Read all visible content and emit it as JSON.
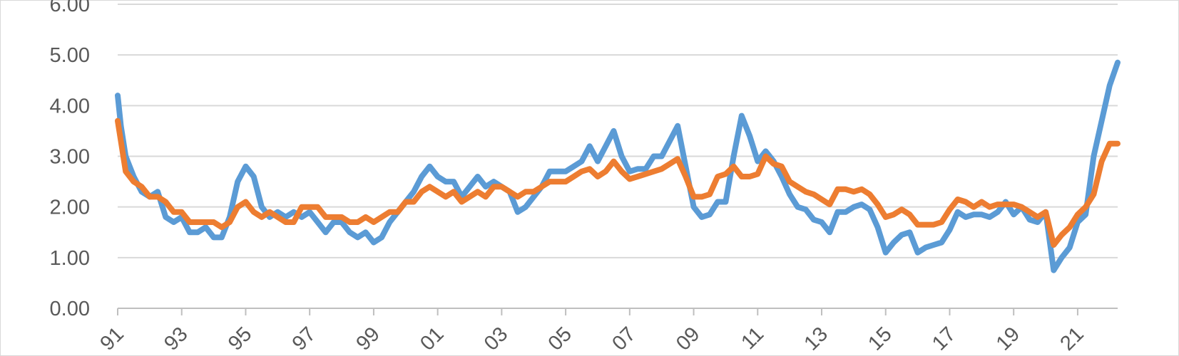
{
  "chart_data": {
    "type": "line",
    "title": "",
    "xlabel": "",
    "ylabel": "",
    "ylim": [
      0,
      6
    ],
    "y_ticks": [
      "0.00",
      "1.00",
      "2.00",
      "3.00",
      "4.00",
      "5.00",
      "6.00"
    ],
    "x_ticks": [
      "91",
      "93",
      "95",
      "97",
      "99",
      "01",
      "03",
      "05",
      "07",
      "09",
      "11",
      "13",
      "15",
      "17",
      "19",
      "21"
    ],
    "x_range": [
      1991,
      2022.25
    ],
    "grid": true,
    "legend": "none",
    "colors": {
      "series1": "#5B9BD5",
      "series2": "#ED7D31",
      "grid": "#d9d9d9",
      "axis": "#bfbfbf",
      "text": "#595959"
    },
    "series": [
      {
        "color": "#5B9BD5",
        "x": [
          1991.0,
          1991.1,
          1991.25,
          1991.5,
          1991.75,
          1992.0,
          1992.25,
          1992.5,
          1992.75,
          1993.0,
          1993.25,
          1993.5,
          1993.75,
          1994.0,
          1994.25,
          1994.5,
          1994.75,
          1995.0,
          1995.25,
          1995.5,
          1995.75,
          1996.0,
          1996.25,
          1996.5,
          1996.75,
          1997.0,
          1997.25,
          1997.5,
          1997.75,
          1998.0,
          1998.25,
          1998.5,
          1998.75,
          1999.0,
          1999.25,
          1999.5,
          1999.75,
          2000.0,
          2000.25,
          2000.5,
          2000.75,
          2001.0,
          2001.25,
          2001.5,
          2001.75,
          2002.0,
          2002.25,
          2002.5,
          2002.75,
          2003.0,
          2003.25,
          2003.5,
          2003.75,
          2004.0,
          2004.25,
          2004.5,
          2004.75,
          2005.0,
          2005.25,
          2005.5,
          2005.75,
          2006.0,
          2006.25,
          2006.5,
          2006.75,
          2007.0,
          2007.25,
          2007.5,
          2007.75,
          2008.0,
          2008.25,
          2008.5,
          2008.75,
          2009.0,
          2009.25,
          2009.5,
          2009.75,
          2010.0,
          2010.25,
          2010.5,
          2010.75,
          2011.0,
          2011.25,
          2011.5,
          2011.75,
          2012.0,
          2012.25,
          2012.5,
          2012.75,
          2013.0,
          2013.25,
          2013.5,
          2013.75,
          2014.0,
          2014.25,
          2014.5,
          2014.75,
          2015.0,
          2015.25,
          2015.5,
          2015.75,
          2016.0,
          2016.25,
          2016.5,
          2016.75,
          2017.0,
          2017.25,
          2017.5,
          2017.75,
          2018.0,
          2018.25,
          2018.5,
          2018.75,
          2019.0,
          2019.25,
          2019.5,
          2019.75,
          2020.0,
          2020.25,
          2020.5,
          2020.75,
          2021.0,
          2021.25,
          2021.5,
          2021.75,
          2022.0,
          2022.25
        ],
        "y": [
          4.2,
          3.6,
          3.0,
          2.6,
          2.3,
          2.2,
          2.3,
          1.8,
          1.7,
          1.8,
          1.5,
          1.5,
          1.6,
          1.4,
          1.4,
          1.8,
          2.5,
          2.8,
          2.6,
          2.0,
          1.8,
          1.9,
          1.8,
          1.9,
          1.8,
          1.9,
          1.7,
          1.5,
          1.7,
          1.7,
          1.5,
          1.4,
          1.5,
          1.3,
          1.4,
          1.7,
          1.9,
          2.1,
          2.3,
          2.6,
          2.8,
          2.6,
          2.5,
          2.5,
          2.2,
          2.4,
          2.6,
          2.4,
          2.5,
          2.4,
          2.3,
          1.9,
          2.0,
          2.2,
          2.4,
          2.7,
          2.7,
          2.7,
          2.8,
          2.9,
          3.2,
          2.9,
          3.2,
          3.5,
          3.0,
          2.7,
          2.75,
          2.75,
          3.0,
          3.0,
          3.3,
          3.6,
          2.8,
          2.0,
          1.8,
          1.85,
          2.1,
          2.1,
          3.0,
          3.8,
          3.4,
          2.9,
          3.1,
          2.9,
          2.6,
          2.25,
          2.0,
          1.95,
          1.75,
          1.7,
          1.5,
          1.9,
          1.9,
          2.0,
          2.05,
          1.95,
          1.6,
          1.1,
          1.3,
          1.45,
          1.5,
          1.1,
          1.2,
          1.25,
          1.3,
          1.55,
          1.9,
          1.8,
          1.85,
          1.85,
          1.8,
          1.9,
          2.1,
          1.85,
          2.0,
          1.75,
          1.7,
          1.9,
          0.75,
          1.0,
          1.2,
          1.7,
          1.85,
          3.0,
          3.7,
          4.4,
          4.85
        ]
      },
      {
        "color": "#ED7D31",
        "x": [
          1991.0,
          1991.1,
          1991.25,
          1991.5,
          1991.75,
          1992.0,
          1992.25,
          1992.5,
          1992.75,
          1993.0,
          1993.25,
          1993.5,
          1993.75,
          1994.0,
          1994.25,
          1994.5,
          1994.75,
          1995.0,
          1995.25,
          1995.5,
          1995.75,
          1996.0,
          1996.25,
          1996.5,
          1996.75,
          1997.0,
          1997.25,
          1997.5,
          1997.75,
          1998.0,
          1998.25,
          1998.5,
          1998.75,
          1999.0,
          1999.25,
          1999.5,
          1999.75,
          2000.0,
          2000.25,
          2000.5,
          2000.75,
          2001.0,
          2001.25,
          2001.5,
          2001.75,
          2002.0,
          2002.25,
          2002.5,
          2002.75,
          2003.0,
          2003.25,
          2003.5,
          2003.75,
          2004.0,
          2004.25,
          2004.5,
          2004.75,
          2005.0,
          2005.25,
          2005.5,
          2005.75,
          2006.0,
          2006.25,
          2006.5,
          2006.75,
          2007.0,
          2007.25,
          2007.5,
          2007.75,
          2008.0,
          2008.25,
          2008.5,
          2008.75,
          2009.0,
          2009.25,
          2009.5,
          2009.75,
          2010.0,
          2010.25,
          2010.5,
          2010.75,
          2011.0,
          2011.25,
          2011.5,
          2011.75,
          2012.0,
          2012.25,
          2012.5,
          2012.75,
          2013.0,
          2013.25,
          2013.5,
          2013.75,
          2014.0,
          2014.25,
          2014.5,
          2014.75,
          2015.0,
          2015.25,
          2015.5,
          2015.75,
          2016.0,
          2016.25,
          2016.5,
          2016.75,
          2017.0,
          2017.25,
          2017.5,
          2017.75,
          2018.0,
          2018.25,
          2018.5,
          2018.75,
          2019.0,
          2019.25,
          2019.5,
          2019.75,
          2020.0,
          2020.25,
          2020.5,
          2020.75,
          2021.0,
          2021.25,
          2021.5,
          2021.75,
          2022.0,
          2022.25
        ],
        "y": [
          3.7,
          3.3,
          2.7,
          2.5,
          2.4,
          2.2,
          2.2,
          2.1,
          1.9,
          1.9,
          1.7,
          1.7,
          1.7,
          1.7,
          1.6,
          1.7,
          2.0,
          2.1,
          1.9,
          1.8,
          1.9,
          1.8,
          1.7,
          1.7,
          2.0,
          2.0,
          2.0,
          1.8,
          1.8,
          1.8,
          1.7,
          1.7,
          1.8,
          1.7,
          1.8,
          1.9,
          1.9,
          2.1,
          2.1,
          2.3,
          2.4,
          2.3,
          2.2,
          2.3,
          2.1,
          2.2,
          2.3,
          2.2,
          2.4,
          2.4,
          2.3,
          2.2,
          2.3,
          2.3,
          2.4,
          2.5,
          2.5,
          2.5,
          2.6,
          2.7,
          2.75,
          2.6,
          2.7,
          2.9,
          2.7,
          2.55,
          2.6,
          2.65,
          2.7,
          2.75,
          2.85,
          2.95,
          2.6,
          2.2,
          2.2,
          2.25,
          2.6,
          2.65,
          2.8,
          2.6,
          2.6,
          2.65,
          3.0,
          2.85,
          2.8,
          2.5,
          2.4,
          2.3,
          2.25,
          2.15,
          2.05,
          2.35,
          2.35,
          2.3,
          2.35,
          2.25,
          2.05,
          1.8,
          1.85,
          1.95,
          1.85,
          1.65,
          1.65,
          1.65,
          1.7,
          1.95,
          2.15,
          2.1,
          2.0,
          2.1,
          2.0,
          2.05,
          2.05,
          2.05,
          2.0,
          1.9,
          1.8,
          1.9,
          1.25,
          1.45,
          1.6,
          1.85,
          2.0,
          2.25,
          2.9,
          3.25,
          3.25
        ]
      }
    ]
  }
}
